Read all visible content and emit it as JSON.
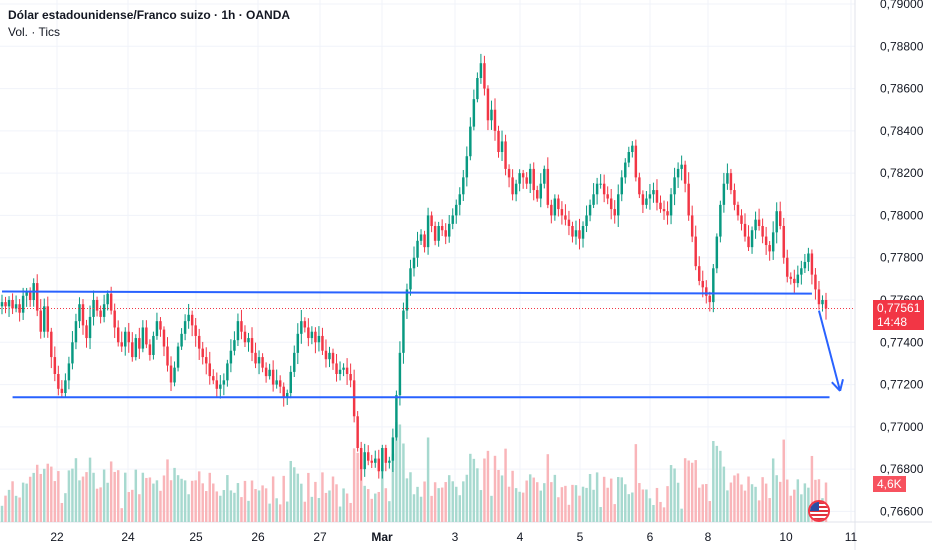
{
  "header": {
    "title": "Dólar estadounidense/Franco suizo · 1h · OANDA",
    "volume_label": "Vol. · Tics"
  },
  "price_axis": {
    "labels": [
      "0,79000",
      "0,78800",
      "0,78600",
      "0,78400",
      "0,78200",
      "0,78000",
      "0,77800",
      "0,77600",
      "0,77400",
      "0,77200",
      "0,77000",
      "0,76800",
      "0,76600"
    ]
  },
  "time_axis": {
    "labels": [
      "22",
      "24",
      "25",
      "26",
      "27",
      "Mar",
      "3",
      "4",
      "5",
      "6",
      "8",
      "10",
      "11"
    ]
  },
  "current_price": {
    "value": "0,77561",
    "countdown": "14:48",
    "color": "#f23645"
  },
  "volume_tag": {
    "value": "4,6K",
    "color": "#f7525f"
  },
  "colors": {
    "up": "#089981",
    "down": "#f23645",
    "lines": "#2962ff",
    "vol_up": "#a7d9cf",
    "vol_down": "#f9b5b9"
  },
  "chart_data": {
    "type": "candlestick",
    "symbol": "USDCHF",
    "interval": "1h",
    "ylim": [
      0.7655,
      0.79
    ],
    "closes": [
      0.7759,
      0.7757,
      0.776,
      0.7756,
      0.7758,
      0.7754,
      0.7762,
      0.7764,
      0.776,
      0.7768,
      0.7755,
      0.7745,
      0.7757,
      0.7745,
      0.7733,
      0.7725,
      0.7718,
      0.7716,
      0.7722,
      0.773,
      0.774,
      0.775,
      0.7758,
      0.7748,
      0.7742,
      0.7752,
      0.776,
      0.7755,
      0.7752,
      0.7758,
      0.7763,
      0.7755,
      0.7747,
      0.774,
      0.7738,
      0.7745,
      0.774,
      0.7733,
      0.7742,
      0.7737,
      0.7747,
      0.7739,
      0.7734,
      0.7743,
      0.775,
      0.7746,
      0.7738,
      0.7729,
      0.7721,
      0.7728,
      0.7738,
      0.7744,
      0.775,
      0.7753,
      0.7748,
      0.7743,
      0.7737,
      0.7733,
      0.773,
      0.7724,
      0.7722,
      0.7718,
      0.772,
      0.7722,
      0.773,
      0.7736,
      0.7741,
      0.775,
      0.7745,
      0.774,
      0.7742,
      0.7735,
      0.773,
      0.7733,
      0.7728,
      0.7724,
      0.7727,
      0.772,
      0.7722,
      0.7719,
      0.7714,
      0.7716,
      0.7726,
      0.7735,
      0.7744,
      0.775,
      0.7747,
      0.7742,
      0.7745,
      0.774,
      0.7743,
      0.7736,
      0.7732,
      0.7735,
      0.773,
      0.7725,
      0.7727,
      0.7728,
      0.7725,
      0.7722,
      0.7705,
      0.769,
      0.768,
      0.7688,
      0.7684,
      0.7683,
      0.7685,
      0.7679,
      0.769,
      0.7683,
      0.7684,
      0.7695,
      0.7715,
      0.7735,
      0.7755,
      0.7765,
      0.7775,
      0.778,
      0.7788,
      0.7791,
      0.7785,
      0.78,
      0.7795,
      0.7788,
      0.7795,
      0.7793,
      0.779,
      0.7796,
      0.78,
      0.7805,
      0.781,
      0.7818,
      0.7828,
      0.7842,
      0.7855,
      0.7865,
      0.7872,
      0.786,
      0.7845,
      0.785,
      0.784,
      0.783,
      0.7835,
      0.7822,
      0.7818,
      0.781,
      0.7815,
      0.782,
      0.7818,
      0.7815,
      0.7822,
      0.7812,
      0.7808,
      0.7815,
      0.7822,
      0.7805,
      0.78,
      0.7808,
      0.7803,
      0.78,
      0.7798,
      0.7795,
      0.779,
      0.7793,
      0.7789,
      0.7795,
      0.78,
      0.7805,
      0.781,
      0.7815,
      0.7815,
      0.781,
      0.7808,
      0.7803,
      0.78,
      0.781,
      0.7818,
      0.7825,
      0.783,
      0.7833,
      0.7818,
      0.781,
      0.7805,
      0.7808,
      0.781,
      0.7812,
      0.7806,
      0.7803,
      0.7802,
      0.78,
      0.781,
      0.7818,
      0.7822,
      0.7824,
      0.7815,
      0.78,
      0.779,
      0.7776,
      0.7769,
      0.7766,
      0.7762,
      0.7759,
      0.7775,
      0.779,
      0.7805,
      0.7815,
      0.782,
      0.7812,
      0.7805,
      0.78,
      0.7796,
      0.779,
      0.7785,
      0.7793,
      0.7798,
      0.7795,
      0.779,
      0.7786,
      0.7783,
      0.7792,
      0.7802,
      0.7795,
      0.778,
      0.7771,
      0.777,
      0.7768,
      0.7772,
      0.7775,
      0.7778,
      0.7782,
      0.7772,
      0.7765,
      0.7758,
      0.776,
      0.7756
    ]
  },
  "annotations": {
    "resistance_line": [
      [
        0,
        0.7764
      ],
      [
        230,
        0.7763
      ]
    ],
    "support_line": [
      [
        3,
        0.7714
      ],
      [
        235,
        0.7714
      ]
    ],
    "arrow": [
      [
        232,
        0.7755
      ],
      [
        238,
        0.7717
      ]
    ]
  }
}
